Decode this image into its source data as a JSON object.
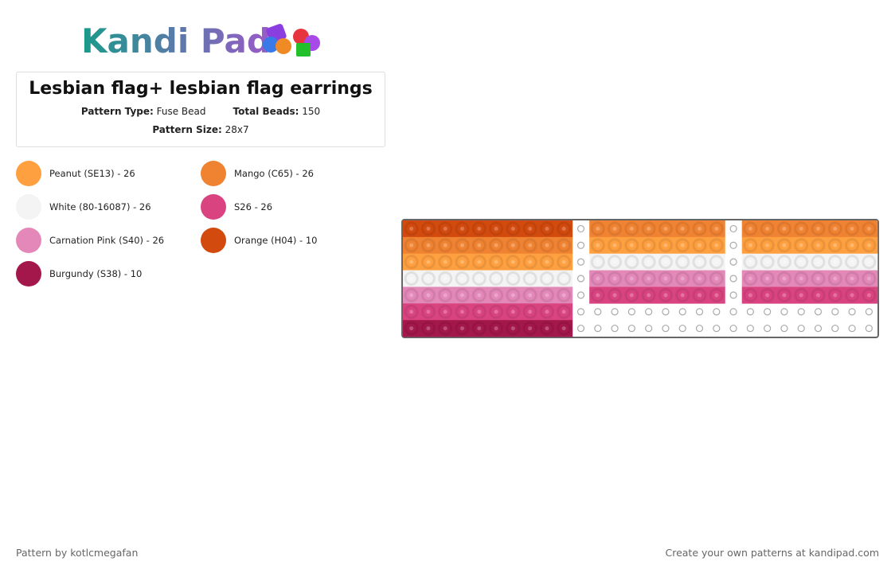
{
  "header": {
    "logo": "Kandi Pad",
    "title": "Lesbian flag+ lesbian flag earrings",
    "pattern_type_label": "Pattern Type:",
    "pattern_type": "Fuse Bead",
    "total_beads_label": "Total Beads:",
    "total_beads": 150,
    "pattern_size_label": "Pattern Size:",
    "pattern_size": "28x7"
  },
  "legend": [
    {
      "label": "Peanut (SE13) - 26",
      "color": "#ffa040"
    },
    {
      "label": "Mango (C65) - 26",
      "color": "#f08332"
    },
    {
      "label": "White (80-16087) - 26",
      "color": "#f4f4f4"
    },
    {
      "label": "S26 - 26",
      "color": "#d94480"
    },
    {
      "label": "Carnation Pink (S40) - 26",
      "color": "#e388b8"
    },
    {
      "label": "Orange (H04) - 10",
      "color": "#d24a0e"
    },
    {
      "label": "Burgundy (S38) - 10",
      "color": "#a3174a"
    }
  ],
  "footer": {
    "author": "Pattern by kotlcmegafan",
    "cta": "Create your own patterns at kandipad.com"
  }
}
